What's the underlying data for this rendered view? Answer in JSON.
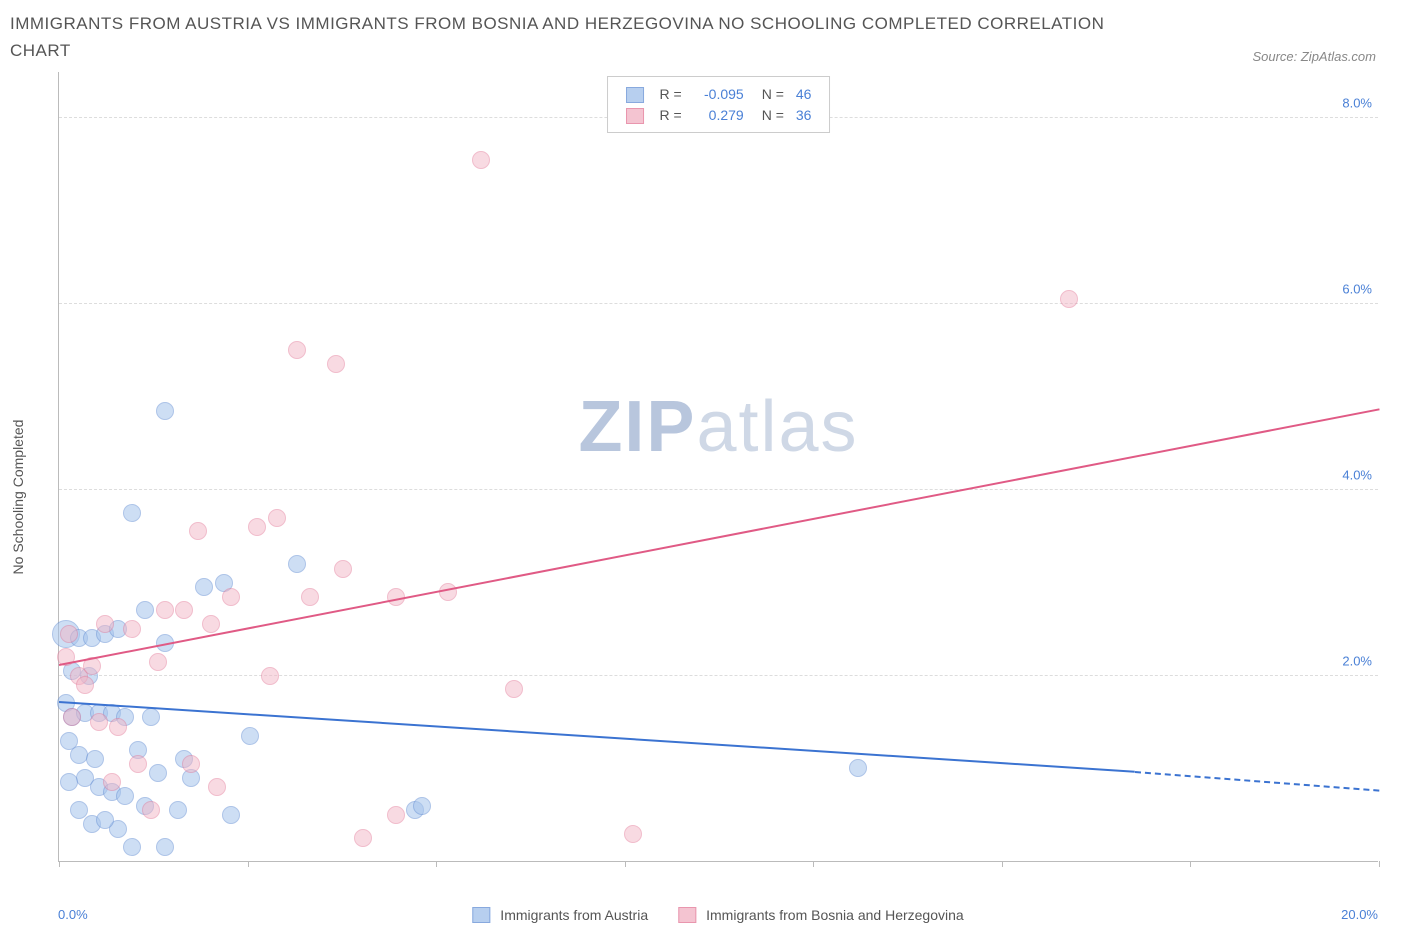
{
  "header": {
    "title": "IMMIGRANTS FROM AUSTRIA VS IMMIGRANTS FROM BOSNIA AND HERZEGOVINA NO SCHOOLING COMPLETED CORRELATION CHART",
    "source_prefix": "Source: ",
    "source_name": "ZipAtlas.com"
  },
  "chart": {
    "type": "scatter-correlation",
    "background_color": "#ffffff",
    "grid_color": "#dddddd",
    "axis_color": "#bbbbbb",
    "tick_label_color": "#4a80d6",
    "ylabel": "No Schooling Completed",
    "xlim": [
      0,
      20
    ],
    "ylim": [
      0,
      8.5
    ],
    "yticks": [
      2,
      4,
      6,
      8
    ],
    "ytick_labels": [
      "2.0%",
      "4.0%",
      "6.0%",
      "8.0%"
    ],
    "xticks": [
      0,
      2.86,
      5.71,
      8.57,
      11.43,
      14.29,
      17.14,
      20
    ],
    "xtick_labels_shown": {
      "0": "0.0%",
      "20": "20.0%"
    },
    "watermark": {
      "part1": "ZIP",
      "part2": "atlas"
    },
    "series": [
      {
        "key": "austria",
        "label": "Immigrants from Austria",
        "fill_color": "#a6c4ec",
        "fill_opacity": 0.55,
        "stroke_color": "#6b94d6",
        "line_color": "#3b73d1",
        "R": "-0.095",
        "N": "46",
        "marker_radius": 9,
        "trend": {
          "x1": 0,
          "y1": 1.7,
          "x2": 16.3,
          "y2": 0.95,
          "dash_x2": 20,
          "dash_y2": 0.75
        },
        "points": [
          {
            "x": 0.1,
            "y": 2.45,
            "r": 14
          },
          {
            "x": 0.3,
            "y": 2.4
          },
          {
            "x": 0.5,
            "y": 2.4
          },
          {
            "x": 0.7,
            "y": 2.45
          },
          {
            "x": 0.1,
            "y": 1.7
          },
          {
            "x": 0.2,
            "y": 1.55
          },
          {
            "x": 0.4,
            "y": 1.6
          },
          {
            "x": 0.6,
            "y": 1.6
          },
          {
            "x": 0.8,
            "y": 1.6
          },
          {
            "x": 0.15,
            "y": 1.3
          },
          {
            "x": 0.3,
            "y": 1.15
          },
          {
            "x": 0.55,
            "y": 1.1
          },
          {
            "x": 0.4,
            "y": 0.9
          },
          {
            "x": 0.6,
            "y": 0.8
          },
          {
            "x": 0.8,
            "y": 0.75
          },
          {
            "x": 1.0,
            "y": 0.7
          },
          {
            "x": 1.3,
            "y": 0.6
          },
          {
            "x": 0.5,
            "y": 0.4
          },
          {
            "x": 0.9,
            "y": 0.35
          },
          {
            "x": 1.1,
            "y": 0.15
          },
          {
            "x": 1.6,
            "y": 0.15
          },
          {
            "x": 0.3,
            "y": 0.55
          },
          {
            "x": 1.2,
            "y": 1.2
          },
          {
            "x": 1.5,
            "y": 0.95
          },
          {
            "x": 1.4,
            "y": 1.55
          },
          {
            "x": 1.9,
            "y": 1.1
          },
          {
            "x": 0.9,
            "y": 2.5
          },
          {
            "x": 1.3,
            "y": 2.7
          },
          {
            "x": 1.6,
            "y": 2.35
          },
          {
            "x": 2.2,
            "y": 2.95
          },
          {
            "x": 2.5,
            "y": 3.0
          },
          {
            "x": 2.0,
            "y": 0.9
          },
          {
            "x": 2.6,
            "y": 0.5
          },
          {
            "x": 2.9,
            "y": 1.35
          },
          {
            "x": 1.1,
            "y": 3.75
          },
          {
            "x": 1.6,
            "y": 4.85
          },
          {
            "x": 3.6,
            "y": 3.2
          },
          {
            "x": 5.4,
            "y": 0.55
          },
          {
            "x": 5.5,
            "y": 0.6
          },
          {
            "x": 12.1,
            "y": 1.0
          },
          {
            "x": 0.2,
            "y": 2.05
          },
          {
            "x": 0.45,
            "y": 2.0
          },
          {
            "x": 0.7,
            "y": 0.45
          },
          {
            "x": 1.0,
            "y": 1.55
          },
          {
            "x": 1.8,
            "y": 0.55
          },
          {
            "x": 0.15,
            "y": 0.85
          }
        ]
      },
      {
        "key": "bosnia",
        "label": "Immigrants from Bosnia and Herzegovina",
        "fill_color": "#f2b6c6",
        "fill_opacity": 0.5,
        "stroke_color": "#e47c9a",
        "line_color": "#e05a85",
        "R": "0.279",
        "N": "36",
        "marker_radius": 9,
        "trend": {
          "x1": 0,
          "y1": 2.1,
          "x2": 20,
          "y2": 4.85
        },
        "points": [
          {
            "x": 0.1,
            "y": 2.2
          },
          {
            "x": 0.3,
            "y": 2.0
          },
          {
            "x": 0.4,
            "y": 1.9
          },
          {
            "x": 0.5,
            "y": 2.1
          },
          {
            "x": 0.2,
            "y": 1.55
          },
          {
            "x": 0.6,
            "y": 1.5
          },
          {
            "x": 0.9,
            "y": 1.45
          },
          {
            "x": 0.7,
            "y": 2.55
          },
          {
            "x": 1.1,
            "y": 2.5
          },
          {
            "x": 1.5,
            "y": 2.15
          },
          {
            "x": 1.6,
            "y": 2.7
          },
          {
            "x": 1.9,
            "y": 2.7
          },
          {
            "x": 2.3,
            "y": 2.55
          },
          {
            "x": 2.6,
            "y": 2.85
          },
          {
            "x": 3.2,
            "y": 2.0
          },
          {
            "x": 2.0,
            "y": 1.05
          },
          {
            "x": 2.4,
            "y": 0.8
          },
          {
            "x": 3.0,
            "y": 3.6
          },
          {
            "x": 3.3,
            "y": 3.7
          },
          {
            "x": 2.1,
            "y": 3.55
          },
          {
            "x": 3.8,
            "y": 2.85
          },
          {
            "x": 4.3,
            "y": 3.15
          },
          {
            "x": 4.2,
            "y": 5.35
          },
          {
            "x": 3.6,
            "y": 5.5
          },
          {
            "x": 5.1,
            "y": 0.5
          },
          {
            "x": 5.1,
            "y": 2.85
          },
          {
            "x": 5.9,
            "y": 2.9
          },
          {
            "x": 6.9,
            "y": 1.85
          },
          {
            "x": 6.4,
            "y": 7.55
          },
          {
            "x": 8.7,
            "y": 0.3
          },
          {
            "x": 15.3,
            "y": 6.05
          },
          {
            "x": 4.6,
            "y": 0.25
          },
          {
            "x": 1.2,
            "y": 1.05
          },
          {
            "x": 0.15,
            "y": 2.45
          },
          {
            "x": 0.8,
            "y": 0.85
          },
          {
            "x": 1.4,
            "y": 0.55
          }
        ]
      }
    ],
    "legend_top_labels": {
      "R": "R =",
      "N": "N ="
    }
  }
}
